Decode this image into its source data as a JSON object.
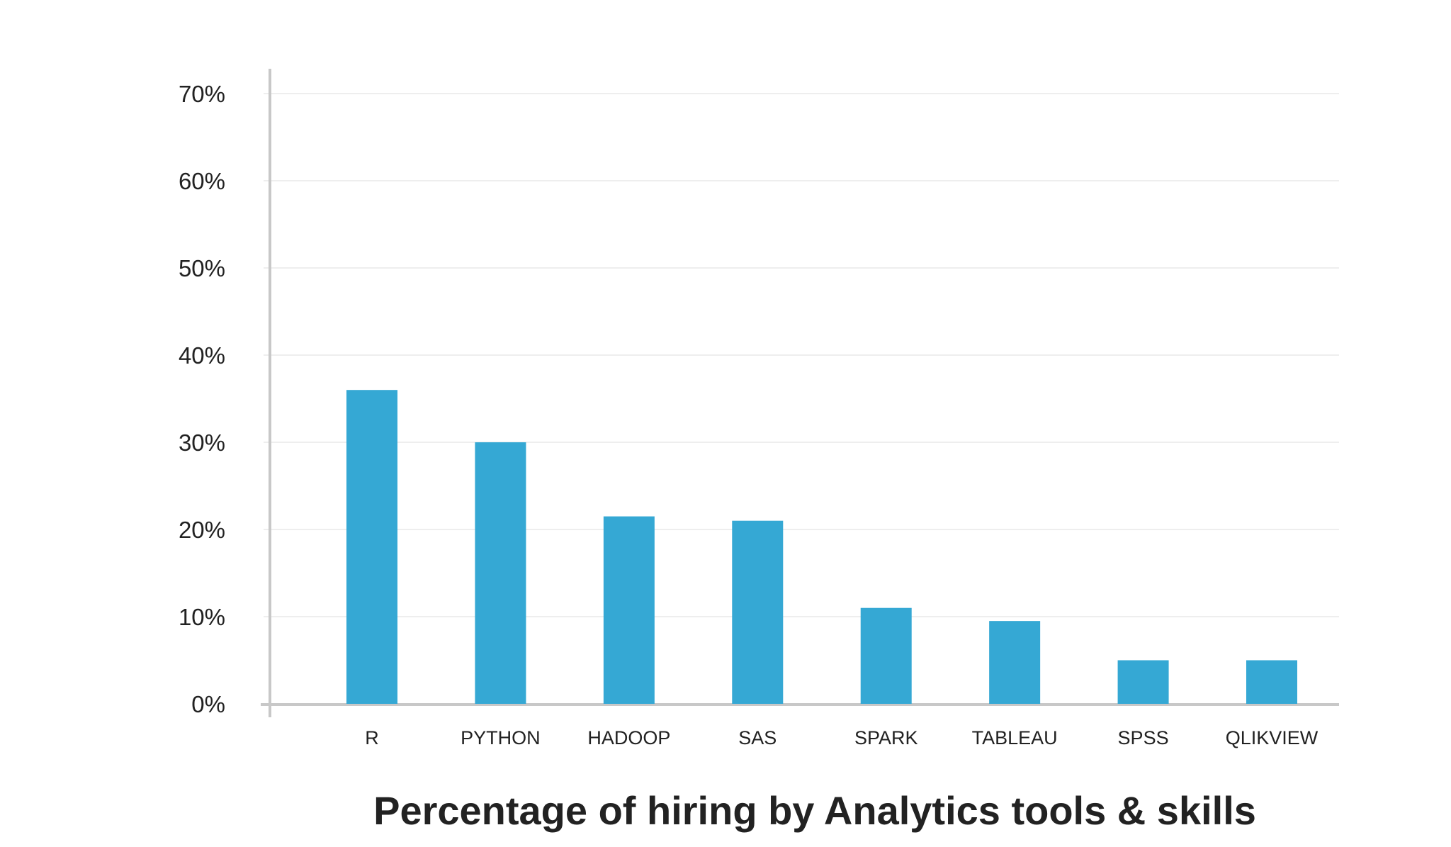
{
  "chart_data": {
    "type": "bar",
    "title": "Percentage of hiring by Analytics tools & skills",
    "xlabel": "",
    "ylabel": "",
    "categories": [
      "R",
      "PYTHON",
      "HADOOP",
      "SAS",
      "SPARK",
      "TABLEAU",
      "SPSS",
      "QLIKVIEW"
    ],
    "values": [
      36,
      30,
      21.5,
      21,
      11,
      9.5,
      5,
      5
    ],
    "ylim": [
      0,
      70
    ],
    "yticks": [
      "0%",
      "10%",
      "20%",
      "30%",
      "40%",
      "50%",
      "60%",
      "70%"
    ],
    "grid": true,
    "legend": "none",
    "bar_color": "#35a8d4",
    "grid_color": "#e3e3e3",
    "axis_color": "#c8c8c8"
  }
}
